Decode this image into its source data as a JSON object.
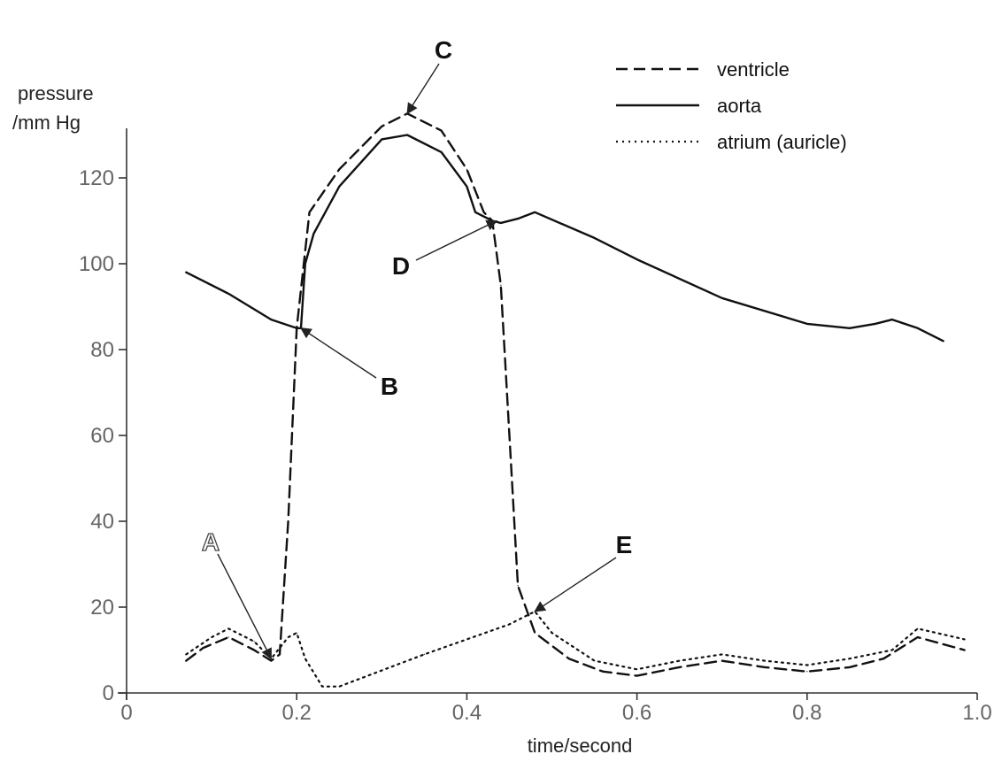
{
  "chart_data": {
    "type": "line",
    "xlabel": "time/second",
    "ylabel": [
      "pressure",
      "/mm Hg"
    ],
    "xlim": [
      0,
      1.0
    ],
    "ylim": [
      0,
      130
    ],
    "xticks": [
      0,
      0.2,
      0.4,
      0.6,
      0.8,
      1.0
    ],
    "xtick_labels": [
      "0",
      "0.2",
      "0.4",
      "0.6",
      "0.8",
      "1.0"
    ],
    "yticks": [
      0,
      20,
      40,
      60,
      80,
      100,
      120
    ],
    "ytick_labels": [
      "0",
      "20",
      "40",
      "60",
      "80",
      "100",
      "120"
    ],
    "grid": false,
    "legend_position": "top-right",
    "series": [
      {
        "name": "ventricle",
        "style": "dashed",
        "points": [
          [
            0.07,
            7.5
          ],
          [
            0.09,
            10.5
          ],
          [
            0.12,
            13
          ],
          [
            0.15,
            10
          ],
          [
            0.17,
            7.5
          ],
          [
            0.18,
            9
          ],
          [
            0.19,
            40
          ],
          [
            0.2,
            85
          ],
          [
            0.215,
            112
          ],
          [
            0.25,
            122
          ],
          [
            0.3,
            132
          ],
          [
            0.33,
            135
          ],
          [
            0.37,
            131
          ],
          [
            0.4,
            122
          ],
          [
            0.42,
            112
          ],
          [
            0.43,
            110
          ],
          [
            0.44,
            95
          ],
          [
            0.45,
            60
          ],
          [
            0.46,
            25
          ],
          [
            0.48,
            14
          ],
          [
            0.52,
            8
          ],
          [
            0.56,
            5
          ],
          [
            0.6,
            4
          ],
          [
            0.65,
            6
          ],
          [
            0.7,
            7.5
          ],
          [
            0.75,
            6
          ],
          [
            0.8,
            5
          ],
          [
            0.85,
            6
          ],
          [
            0.89,
            8
          ],
          [
            0.93,
            13
          ],
          [
            0.985,
            10
          ]
        ]
      },
      {
        "name": "aorta",
        "style": "solid",
        "points": [
          [
            0.07,
            98
          ],
          [
            0.12,
            93
          ],
          [
            0.17,
            87
          ],
          [
            0.2,
            85
          ],
          [
            0.205,
            85
          ],
          [
            0.21,
            100
          ],
          [
            0.22,
            107
          ],
          [
            0.25,
            118
          ],
          [
            0.3,
            129
          ],
          [
            0.33,
            130
          ],
          [
            0.37,
            126
          ],
          [
            0.4,
            118
          ],
          [
            0.41,
            112
          ],
          [
            0.43,
            110
          ],
          [
            0.44,
            109.5
          ],
          [
            0.46,
            110.5
          ],
          [
            0.48,
            112
          ],
          [
            0.55,
            106
          ],
          [
            0.6,
            101
          ],
          [
            0.7,
            92
          ],
          [
            0.8,
            86
          ],
          [
            0.85,
            85
          ],
          [
            0.88,
            86
          ],
          [
            0.9,
            87
          ],
          [
            0.93,
            85
          ],
          [
            0.96,
            82
          ]
        ]
      },
      {
        "name": "atrium (auricle)",
        "style": "dotted",
        "points": [
          [
            0.07,
            9
          ],
          [
            0.1,
            13
          ],
          [
            0.12,
            15
          ],
          [
            0.15,
            12
          ],
          [
            0.17,
            8
          ],
          [
            0.19,
            13
          ],
          [
            0.2,
            14
          ],
          [
            0.21,
            8
          ],
          [
            0.23,
            1.5
          ],
          [
            0.25,
            1.5
          ],
          [
            0.35,
            9
          ],
          [
            0.45,
            16
          ],
          [
            0.48,
            19
          ],
          [
            0.5,
            14
          ],
          [
            0.55,
            7.5
          ],
          [
            0.6,
            5.5
          ],
          [
            0.65,
            7.5
          ],
          [
            0.7,
            9
          ],
          [
            0.75,
            7.5
          ],
          [
            0.8,
            6.5
          ],
          [
            0.85,
            8
          ],
          [
            0.9,
            10
          ],
          [
            0.93,
            15
          ],
          [
            0.985,
            12.5
          ]
        ]
      }
    ],
    "annotations": [
      {
        "label": "A",
        "x": 0.17,
        "y": 8
      },
      {
        "label": "B",
        "x": 0.205,
        "y": 85
      },
      {
        "label": "C",
        "x": 0.33,
        "y": 135
      },
      {
        "label": "D",
        "x": 0.435,
        "y": 110
      },
      {
        "label": "E",
        "x": 0.48,
        "y": 19
      }
    ]
  }
}
